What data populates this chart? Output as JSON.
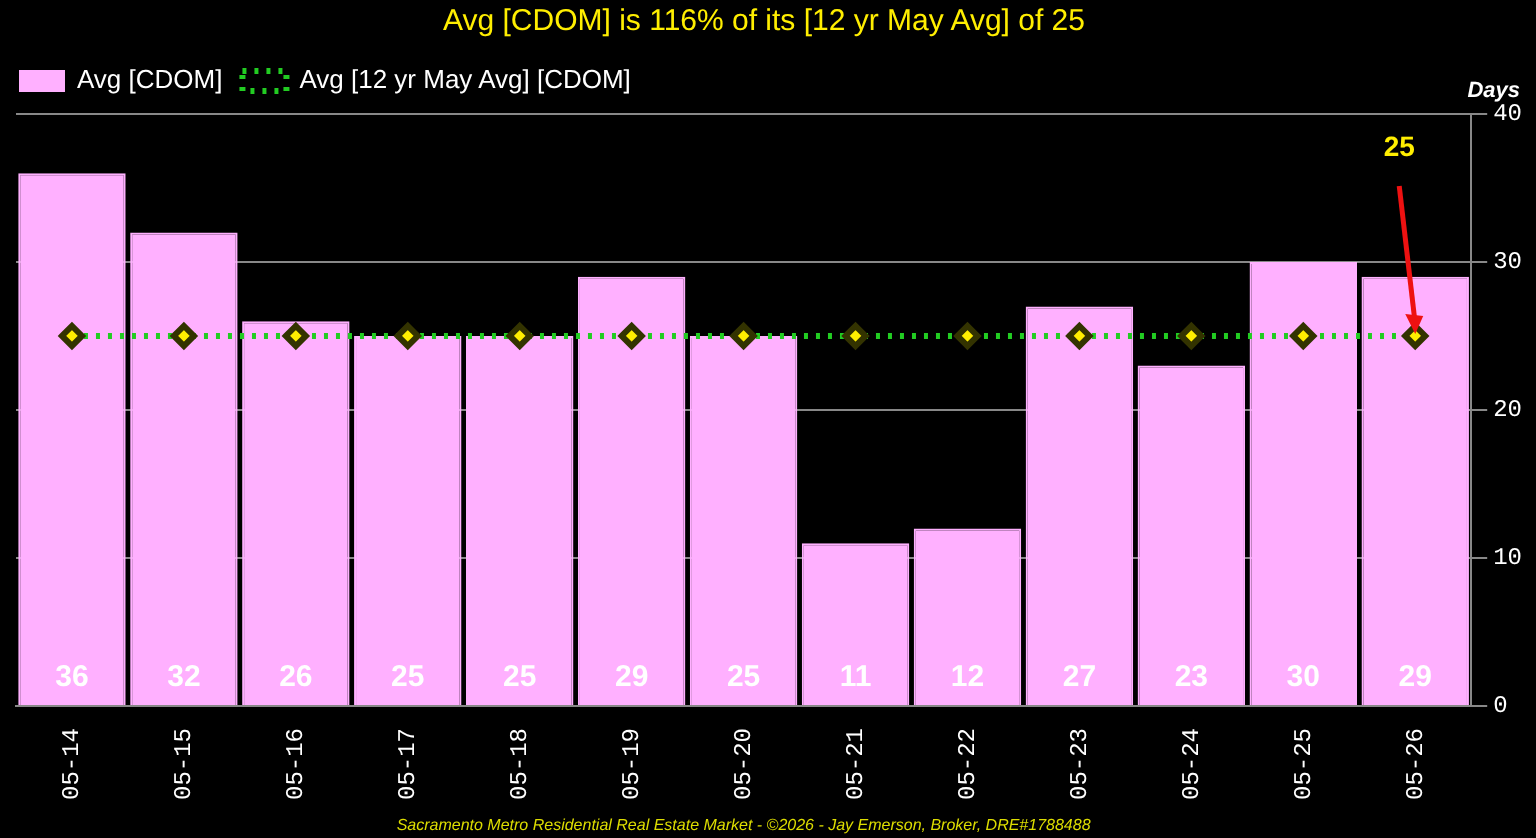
{
  "chart_data": {
    "type": "bar",
    "title": "Avg [CDOM] is 116% of its [12 yr May Avg] of 25",
    "ylabel": "Days",
    "categories": [
      "05-14",
      "05-15",
      "05-16",
      "05-17",
      "05-18",
      "05-19",
      "05-20",
      "05-21",
      "05-22",
      "05-23",
      "05-24",
      "05-25",
      "05-26"
    ],
    "series": [
      {
        "name": "Avg [CDOM]",
        "color": "#ffb0ff",
        "values": [
          36,
          32,
          26,
          25,
          25,
          29,
          25,
          11,
          12,
          27,
          23,
          30,
          29
        ],
        "value_labels": [
          "36",
          "32",
          "26",
          "25",
          "25",
          "29",
          "25",
          "11",
          "12",
          "27",
          "23",
          "30",
          "29"
        ]
      },
      {
        "name": "Avg [12 yr May Avg] [CDOM]",
        "type": "line",
        "color": "#22cc22",
        "marker": "diamond",
        "line_style": "dotted",
        "values": [
          25,
          25,
          25,
          25,
          25,
          25,
          25,
          25,
          25,
          25,
          25,
          25,
          25
        ]
      }
    ],
    "ylim": [
      0,
      40
    ],
    "yticks": [
      0,
      10,
      20,
      30,
      40
    ],
    "grid": "y",
    "legend": "top left",
    "annotations": [
      {
        "text": "25",
        "x": "05-26",
        "y": 25
      },
      "Sacramento Metro Residential Real Estate Market - ©2026 - Jay Emerson, Broker, DRE#1788488"
    ]
  }
}
